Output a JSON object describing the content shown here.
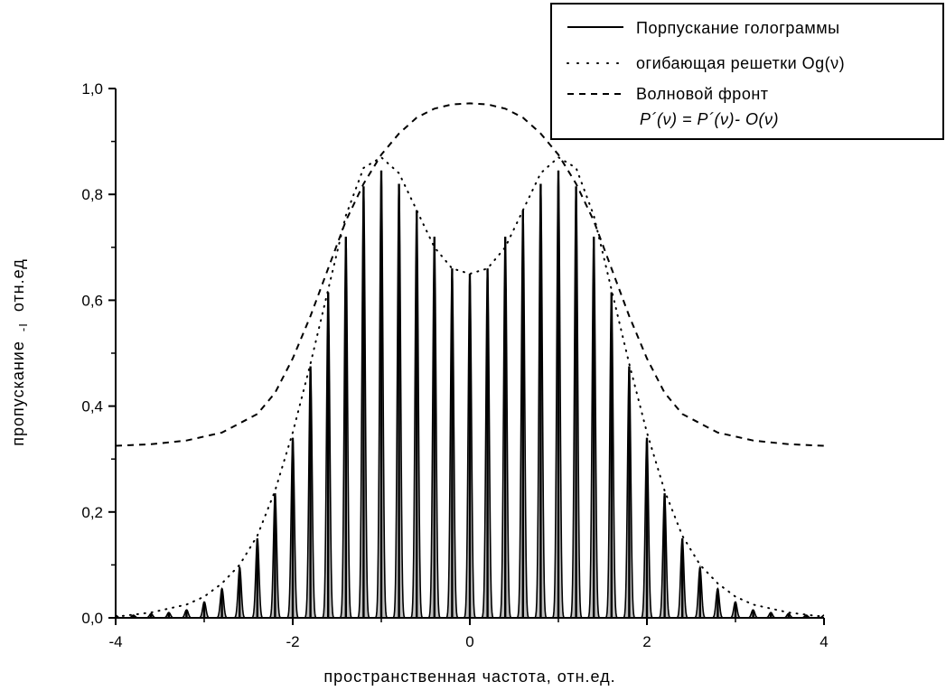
{
  "chart_data": {
    "type": "line",
    "title": "",
    "xlabel": "пространственная частота, отн.ед.",
    "ylabel": "пропускание",
    "ylabel_unit": "отн.ед",
    "ylabel_sub": "-I",
    "xlim": [
      -4,
      4
    ],
    "ylim": [
      0,
      1.0
    ],
    "x_ticks": [
      "-4",
      "-2",
      "0",
      "2",
      "4"
    ],
    "y_ticks": [
      "0,0",
      "0,2",
      "0,4",
      "0,6",
      "0,8",
      "1,0"
    ],
    "x_tick_values": [
      -4,
      -2,
      0,
      2,
      4
    ],
    "y_tick_values": [
      0,
      0.2,
      0.4,
      0.6,
      0.8,
      1.0
    ],
    "legend": {
      "placement": "top-right",
      "entries": [
        {
          "label": "Порпускание голограммы",
          "style": "solid"
        },
        {
          "label": "огибающая решетки Og(ν)",
          "style": "dotted"
        },
        {
          "label": "Волновой фронт",
          "style": "dashed"
        }
      ],
      "formula": "P´(ν) = P´(ν)- O(ν)"
    },
    "series": [
      {
        "name": "Порпускание голограммы",
        "style": "solid",
        "fill": "#c0c0c0",
        "fringe_period": 0.2,
        "note_values": "peak heights",
        "x": [
          -3.8,
          -3.6,
          -3.4,
          -3.2,
          -3.0,
          -2.8,
          -2.6,
          -2.4,
          -2.2,
          -2.0,
          -1.8,
          -1.6,
          -1.4,
          -1.2,
          -1.0,
          -0.8,
          -0.6,
          -0.4,
          -0.2,
          0.0,
          0.2,
          0.4,
          0.6,
          0.8,
          1.0,
          1.2,
          1.4,
          1.6,
          1.8,
          2.0,
          2.2,
          2.4,
          2.6,
          2.8,
          3.0,
          3.2,
          3.4,
          3.6,
          3.8
        ],
        "y": [
          0.005,
          0.008,
          0.01,
          0.015,
          0.03,
          0.055,
          0.095,
          0.15,
          0.235,
          0.34,
          0.475,
          0.615,
          0.72,
          0.815,
          0.845,
          0.82,
          0.77,
          0.72,
          0.66,
          0.65,
          0.66,
          0.72,
          0.77,
          0.82,
          0.845,
          0.815,
          0.72,
          0.615,
          0.475,
          0.34,
          0.235,
          0.15,
          0.095,
          0.055,
          0.03,
          0.015,
          0.01,
          0.008,
          0.005
        ]
      },
      {
        "name": "огибающая решетки Og(ν)",
        "style": "dotted",
        "x": [
          -4.0,
          -3.6,
          -3.2,
          -3.0,
          -2.8,
          -2.6,
          -2.4,
          -2.2,
          -2.0,
          -1.8,
          -1.6,
          -1.4,
          -1.2,
          -1.0,
          -0.8,
          -0.6,
          -0.4,
          -0.2,
          0.0,
          0.2,
          0.4,
          0.6,
          0.8,
          1.0,
          1.2,
          1.4,
          1.6,
          1.8,
          2.0,
          2.2,
          2.4,
          2.6,
          2.8,
          3.0,
          3.2,
          3.6,
          4.0
        ],
        "y": [
          0.002,
          0.01,
          0.025,
          0.04,
          0.065,
          0.1,
          0.155,
          0.24,
          0.35,
          0.48,
          0.62,
          0.76,
          0.85,
          0.87,
          0.84,
          0.77,
          0.7,
          0.66,
          0.65,
          0.66,
          0.7,
          0.77,
          0.84,
          0.87,
          0.85,
          0.76,
          0.62,
          0.48,
          0.35,
          0.24,
          0.155,
          0.1,
          0.065,
          0.04,
          0.025,
          0.01,
          0.002
        ]
      },
      {
        "name": "Волновой фронт",
        "style": "dashed",
        "x": [
          -4.0,
          -3.6,
          -3.2,
          -2.8,
          -2.4,
          -2.2,
          -2.0,
          -1.8,
          -1.6,
          -1.4,
          -1.2,
          -1.0,
          -0.8,
          -0.6,
          -0.4,
          -0.2,
          0.0,
          0.2,
          0.4,
          0.6,
          0.8,
          1.0,
          1.2,
          1.4,
          1.6,
          1.8,
          2.0,
          2.2,
          2.4,
          2.8,
          3.2,
          3.6,
          4.0
        ],
        "y": [
          0.325,
          0.328,
          0.335,
          0.35,
          0.385,
          0.425,
          0.49,
          0.57,
          0.66,
          0.75,
          0.82,
          0.875,
          0.915,
          0.945,
          0.962,
          0.97,
          0.972,
          0.97,
          0.962,
          0.945,
          0.915,
          0.875,
          0.82,
          0.75,
          0.66,
          0.57,
          0.49,
          0.425,
          0.385,
          0.35,
          0.335,
          0.328,
          0.325
        ]
      }
    ],
    "grid": false
  }
}
